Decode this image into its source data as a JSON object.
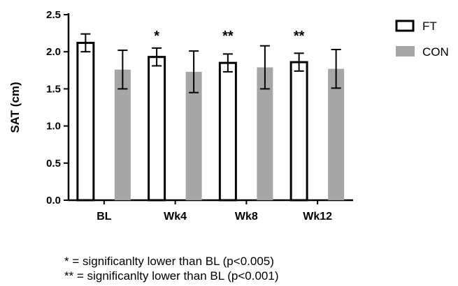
{
  "chart_data": {
    "type": "bar",
    "categories": [
      "BL",
      "Wk4",
      "Wk8",
      "Wk12"
    ],
    "series": [
      {
        "name": "FT",
        "values": [
          2.12,
          1.93,
          1.85,
          1.86
        ],
        "errors": [
          0.12,
          0.12,
          0.12,
          0.12
        ],
        "style": "open"
      },
      {
        "name": "CON",
        "values": [
          1.76,
          1.73,
          1.79,
          1.77
        ],
        "errors": [
          0.26,
          0.28,
          0.29,
          0.26
        ],
        "style": "filled"
      }
    ],
    "significance": [
      "",
      "*",
      "**",
      "**"
    ],
    "ylabel": "SAT (cm)",
    "xlabel": "",
    "ylim": [
      0,
      2.5
    ],
    "yticks": [
      "0.0",
      "0.5",
      "1.0",
      "1.5",
      "2.0",
      "2.5"
    ],
    "legend_position": "top-right",
    "grid": false,
    "colors": {
      "FT_fill": "#ffffff",
      "FT_stroke": "#000000",
      "CON_fill": "#a6a6a6",
      "axis": "#000000"
    }
  },
  "footnotes": [
    {
      "marker": "*",
      "text": "= significanlty lower than BL (p<0.005)"
    },
    {
      "marker": "**",
      "text": "= significanlty lower than BL (p<0.001)"
    }
  ]
}
